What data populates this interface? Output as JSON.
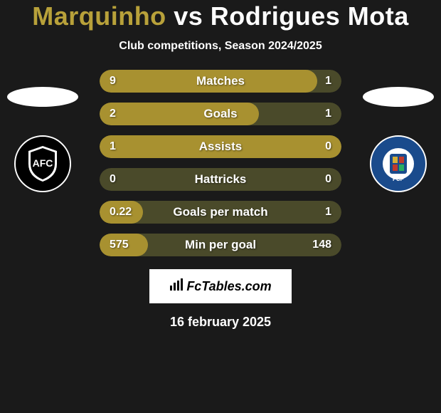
{
  "title": {
    "player1": "Marquinho",
    "vs": "vs",
    "player2": "Rodrigues Mota",
    "player1_color": "#b8a13a",
    "player2_color": "#ffffff"
  },
  "subtitle": "Club competitions, Season 2024/2025",
  "bars": {
    "fill_color": "#a89130",
    "bg_color": "#4a4a2a",
    "height": 32,
    "radius": 16,
    "rows": [
      {
        "label": "Matches",
        "left": "9",
        "right": "1",
        "fill_pct": 90
      },
      {
        "label": "Goals",
        "left": "2",
        "right": "1",
        "fill_pct": 66
      },
      {
        "label": "Assists",
        "left": "1",
        "right": "0",
        "fill_pct": 100
      },
      {
        "label": "Hattricks",
        "left": "0",
        "right": "0",
        "fill_pct": 0
      },
      {
        "label": "Goals per match",
        "left": "0.22",
        "right": "1",
        "fill_pct": 18
      },
      {
        "label": "Min per goal",
        "left": "575",
        "right": "148",
        "fill_pct": 20
      }
    ]
  },
  "badges": {
    "left": {
      "shield_text": "AFC",
      "bg": "#000000",
      "fg": "#ffffff"
    },
    "right": {
      "shield_text": "FCP",
      "bg": "#1a4b8c",
      "fg": "#ffffff"
    }
  },
  "watermark": "FcTables.com",
  "date": "16 february 2025"
}
